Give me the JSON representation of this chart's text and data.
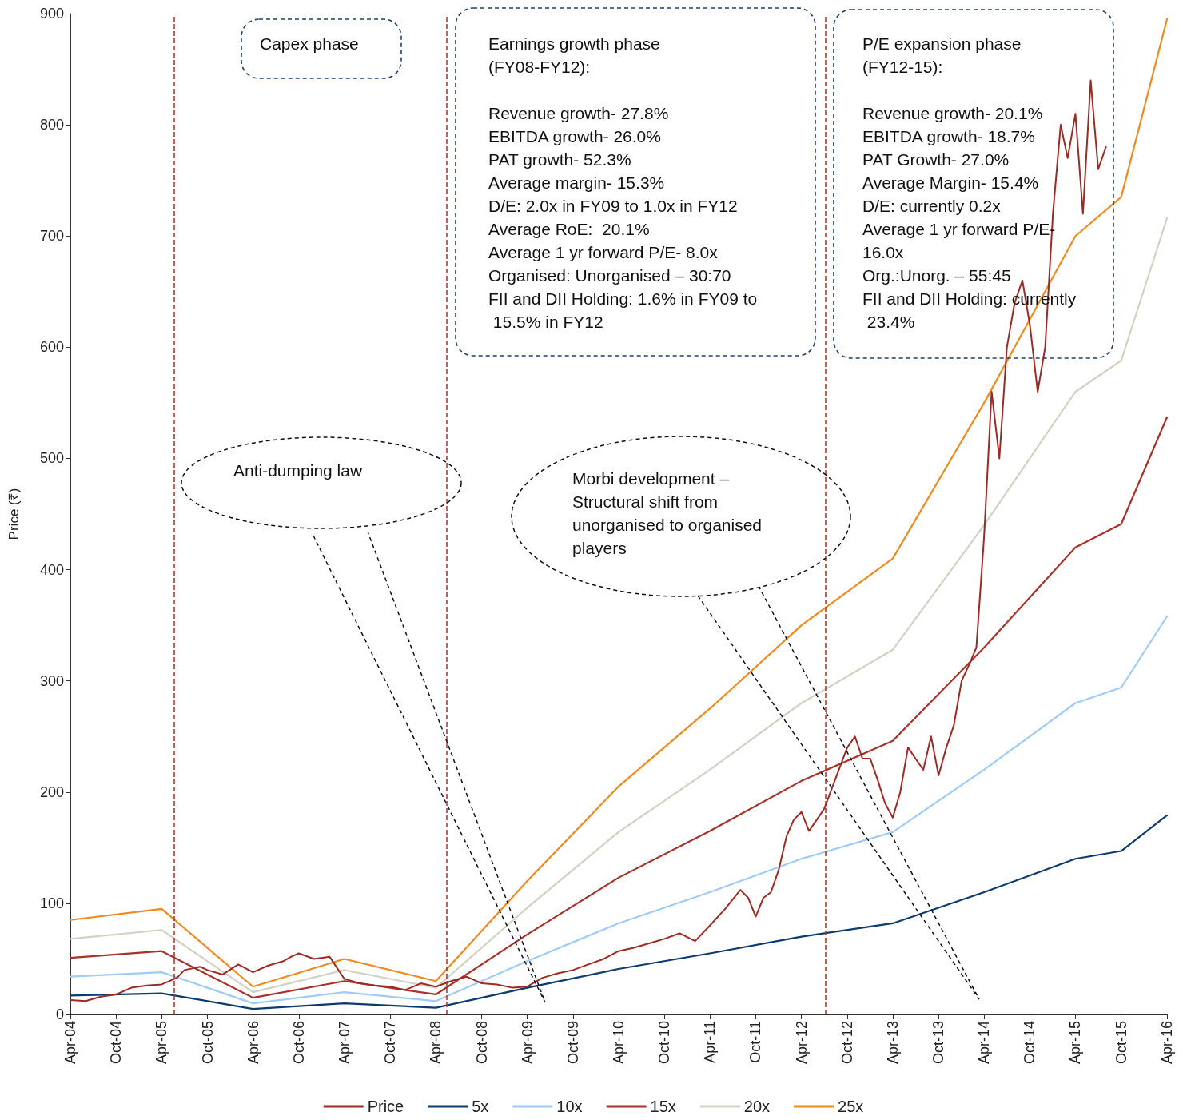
{
  "chart_data": {
    "type": "line",
    "ylabel": "Price (₹)",
    "legend": "bottom",
    "marker": "none",
    "grid": false,
    "xlim": [
      "2004-04",
      "2016-04"
    ],
    "xticks": [
      {
        "value": "2004-04",
        "label": "Apr-04"
      },
      {
        "value": "2004-10",
        "label": "Oct-04"
      },
      {
        "value": "2005-04",
        "label": "Apr-05"
      },
      {
        "value": "2005-10",
        "label": "Oct-05"
      },
      {
        "value": "2006-04",
        "label": "Apr-06"
      },
      {
        "value": "2006-10",
        "label": "Oct-06"
      },
      {
        "value": "2007-04",
        "label": "Apr-07"
      },
      {
        "value": "2007-10",
        "label": "Oct-07"
      },
      {
        "value": "2008-04",
        "label": "Apr-08"
      },
      {
        "value": "2008-10",
        "label": "Oct-08"
      },
      {
        "value": "2009-04",
        "label": "Apr-09"
      },
      {
        "value": "2009-10",
        "label": "Oct-09"
      },
      {
        "value": "2010-04",
        "label": "Apr-10"
      },
      {
        "value": "2010-10",
        "label": "Oct-10"
      },
      {
        "value": "2011-04",
        "label": "Apr-11"
      },
      {
        "value": "2011-10",
        "label": "Oct-11"
      },
      {
        "value": "2012-04",
        "label": "Apr-12"
      },
      {
        "value": "2012-10",
        "label": "Oct-12"
      },
      {
        "value": "2013-04",
        "label": "Apr-13"
      },
      {
        "value": "2013-10",
        "label": "Oct-13"
      },
      {
        "value": "2014-04",
        "label": "Apr-14"
      },
      {
        "value": "2014-10",
        "label": "Oct-14"
      },
      {
        "value": "2015-04",
        "label": "Apr-15"
      },
      {
        "value": "2015-10",
        "label": "Oct-15"
      },
      {
        "value": "2016-04",
        "label": "Apr-16"
      }
    ],
    "ylim": [
      0,
      900
    ],
    "yticks": [
      0,
      100,
      200,
      300,
      400,
      500,
      600,
      700,
      800,
      900
    ],
    "series": [
      {
        "name": "Price",
        "color": "#9e2a24",
        "x": [
          "2004-04",
          "2004-06",
          "2004-08",
          "2004-10",
          "2004-12",
          "2005-02",
          "2005-04",
          "2005-06",
          "2005-07",
          "2005-09",
          "2005-10",
          "2005-12",
          "2006-02",
          "2006-04",
          "2006-06",
          "2006-08",
          "2006-09",
          "2006-10",
          "2006-12",
          "2007-02",
          "2007-04",
          "2007-06",
          "2007-08",
          "2007-10",
          "2007-12",
          "2008-02",
          "2008-04",
          "2008-06",
          "2008-08",
          "2008-10",
          "2008-12",
          "2009-02",
          "2009-04",
          "2009-06",
          "2009-08",
          "2009-10",
          "2009-12",
          "2010-02",
          "2010-04",
          "2010-06",
          "2010-08",
          "2010-10",
          "2010-12",
          "2011-02",
          "2011-04",
          "2011-06",
          "2011-08",
          "2011-09",
          "2011-10",
          "2011-11",
          "2011-12",
          "2012-01",
          "2012-02",
          "2012-03",
          "2012-04",
          "2012-05",
          "2012-06",
          "2012-07",
          "2012-10",
          "2012-11",
          "2012-12",
          "2013-01",
          "2013-02",
          "2013-03",
          "2013-04",
          "2013-05",
          "2013-06",
          "2013-07",
          "2013-08",
          "2013-09",
          "2013-10",
          "2013-11",
          "2013-12",
          "2014-01",
          "2014-02",
          "2014-03",
          "2014-04",
          "2014-05",
          "2014-06",
          "2014-07",
          "2014-08",
          "2014-09",
          "2014-10",
          "2014-11",
          "2014-12",
          "2015-01",
          "2015-02",
          "2015-03",
          "2015-04",
          "2015-05",
          "2015-06",
          "2015-07",
          "2015-08"
        ],
        "values": [
          13,
          12,
          16,
          18,
          24,
          26,
          27,
          33,
          40,
          43,
          40,
          36,
          45,
          38,
          44,
          48,
          52,
          55,
          50,
          52,
          32,
          28,
          26,
          25,
          22,
          28,
          25,
          30,
          34,
          28,
          27,
          24,
          25,
          33,
          37,
          40,
          45,
          50,
          57,
          60,
          64,
          68,
          73,
          66,
          80,
          95,
          112,
          105,
          88,
          105,
          110,
          130,
          160,
          175,
          182,
          165,
          175,
          185,
          240,
          250,
          230,
          230,
          210,
          190,
          177,
          200,
          240,
          230,
          220,
          250,
          215,
          240,
          260,
          300,
          315,
          330,
          430,
          560,
          500,
          600,
          640,
          660,
          620,
          560,
          600,
          720,
          800,
          770,
          810,
          720,
          840,
          760,
          780
        ]
      },
      {
        "name": "5x",
        "color": "#0d3b6e",
        "x": [
          "2004-04",
          "2005-04",
          "2006-04",
          "2007-04",
          "2008-04",
          "2009-04",
          "2010-04",
          "2011-04",
          "2012-04",
          "2013-04",
          "2014-04",
          "2015-04",
          "2015-10",
          "2016-04"
        ],
        "values": [
          17,
          19,
          5,
          10,
          6,
          24,
          41,
          55,
          70,
          82,
          110,
          140,
          147,
          179
        ]
      },
      {
        "name": "10x",
        "color": "#9fcbf5",
        "x": [
          "2004-04",
          "2005-04",
          "2006-04",
          "2007-04",
          "2008-04",
          "2009-04",
          "2010-04",
          "2011-04",
          "2012-04",
          "2013-04",
          "2014-04",
          "2015-04",
          "2015-10",
          "2016-04"
        ],
        "values": [
          34,
          38,
          10,
          20,
          12,
          48,
          82,
          110,
          140,
          164,
          220,
          280,
          294,
          358
        ]
      },
      {
        "name": "15x",
        "color": "#a8322a",
        "x": [
          "2004-04",
          "2005-04",
          "2006-04",
          "2007-04",
          "2008-04",
          "2009-04",
          "2010-04",
          "2011-04",
          "2012-04",
          "2013-04",
          "2014-04",
          "2015-04",
          "2015-10",
          "2016-04"
        ],
        "values": [
          51,
          57,
          15,
          30,
          18,
          72,
          123,
          165,
          210,
          246,
          330,
          420,
          441,
          537
        ]
      },
      {
        "name": "20x",
        "color": "#d2d1c3",
        "x": [
          "2004-04",
          "2005-04",
          "2006-04",
          "2007-04",
          "2008-04",
          "2009-04",
          "2010-04",
          "2011-04",
          "2012-04",
          "2013-04",
          "2014-04",
          "2015-04",
          "2015-10",
          "2016-04"
        ],
        "values": [
          68,
          76,
          20,
          40,
          24,
          96,
          164,
          220,
          280,
          328,
          440,
          560,
          588,
          716
        ]
      },
      {
        "name": "25x",
        "color": "#f08a1e",
        "x": [
          "2004-04",
          "2005-04",
          "2006-04",
          "2007-04",
          "2008-04",
          "2009-04",
          "2010-04",
          "2011-04",
          "2012-04",
          "2013-04",
          "2014-04",
          "2015-04",
          "2015-10",
          "2016-04"
        ],
        "values": [
          85,
          95,
          25,
          50,
          30,
          120,
          205,
          275,
          350,
          410,
          550,
          700,
          735,
          895
        ]
      }
    ],
    "ref_lines": [
      {
        "axis": "x",
        "value": "2005-05-20",
        "color": "#a8322a",
        "line_style": "dashed"
      },
      {
        "axis": "x",
        "value": "2008-05-15",
        "color": "#a8322a",
        "line_style": "dashed"
      },
      {
        "axis": "x",
        "value": "2012-07-05",
        "color": "#a8322a",
        "line_style": "dashed"
      }
    ],
    "annotations": [
      "Capex phase",
      "Earnings growth phase (FY08-FY12):\n\nRevenue growth- 27.8%\nEBITDA growth- 26.0%\nPAT growth- 52.3%\nAverage margin- 15.3%\nD/E: 2.0x in FY09 to 1.0x in FY12\nAverage RoE:  20.1%\nAverage 1 yr forward P/E- 8.0x\nOrganised: Unorganised – 30:70\nFII and DII Holding: 1.6% in FY09 to 15.5% in FY12",
      "P/E expansion phase (FY12-15):\n\nRevenue growth- 20.1%\nEBITDA growth- 18.7%\nPAT Growth- 27.0%\nAverage Margin- 15.4%\nD/E: currently 0.2x\nAverage 1 yr forward P/E- 16.0x\nOrg.:Unorg. – 55:45\nFII and DII Holding: currently 23.4%",
      "Anti-dumping law",
      "Morbi development – Structural shift from unorganised to organised players"
    ]
  }
}
